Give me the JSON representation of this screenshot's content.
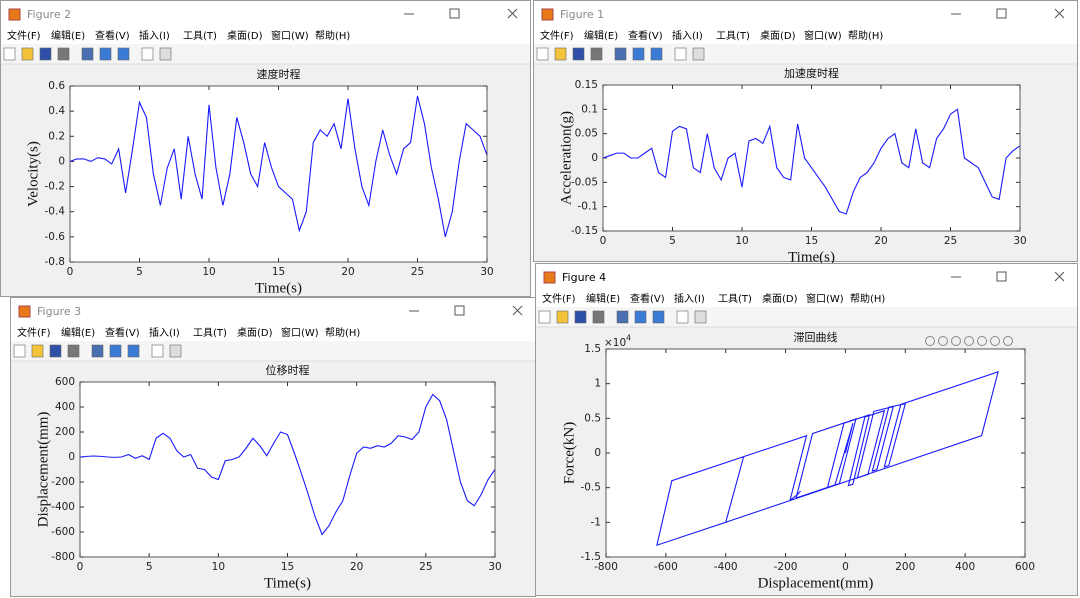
{
  "windows": [
    {
      "title": "Figure 2",
      "menu": [
        "文件(F)",
        "编辑(E)",
        "查看(V)",
        "插入(I)",
        "工具(T)",
        "桌面(D)",
        "窗口(W)",
        "帮助(H)"
      ]
    },
    {
      "title": "Figure 1",
      "menu": [
        "文件(F)",
        "编辑(E)",
        "查看(V)",
        "插入(I)",
        "工具(T)",
        "桌面(D)",
        "窗口(W)",
        "帮助(H)"
      ]
    },
    {
      "title": "Figure 3",
      "menu": [
        "文件(F)",
        "编辑(E)",
        "查看(V)",
        "插入(I)",
        "工具(T)",
        "桌面(D)",
        "窗口(W)",
        "帮助(H)"
      ]
    },
    {
      "title": "Figure 4",
      "menu": [
        "文件(F)",
        "编辑(E)",
        "查看(V)",
        "插入(I)",
        "工具(T)",
        "桌面(D)",
        "窗口(W)",
        "帮助(H)"
      ]
    }
  ],
  "chart_data": [
    {
      "type": "line",
      "title": "速度时程",
      "xlabel": "Time(s)",
      "ylabel": "Velocity(s)",
      "x": [
        0,
        0.5,
        1,
        1.5,
        2,
        2.5,
        3,
        3.5,
        4,
        4.5,
        5,
        5.5,
        6,
        6.5,
        7,
        7.5,
        8,
        8.5,
        9,
        9.5,
        10,
        10.5,
        11,
        11.5,
        12,
        12.5,
        13,
        13.5,
        14,
        14.5,
        15,
        15.5,
        16,
        16.5,
        17,
        17.5,
        18,
        18.5,
        19,
        19.5,
        20,
        20.5,
        21,
        21.5,
        22,
        22.5,
        23,
        23.5,
        24,
        24.5,
        25,
        25.5,
        26,
        26.5,
        27,
        27.5,
        28,
        28.5,
        29,
        29.5,
        30
      ],
      "series": [
        {
          "color": "#1a1aff",
          "values": [
            0,
            0.02,
            0.02,
            0,
            0.03,
            0.02,
            -0.02,
            0.1,
            -0.25,
            0.1,
            0.47,
            0.35,
            -0.1,
            -0.35,
            -0.05,
            0.1,
            -0.3,
            0.2,
            -0.1,
            -0.3,
            0.45,
            -0.05,
            -0.35,
            -0.1,
            0.35,
            0.15,
            -0.1,
            -0.2,
            0.15,
            -0.05,
            -0.2,
            -0.25,
            -0.3,
            -0.55,
            -0.4,
            0.15,
            0.25,
            0.2,
            0.3,
            0.1,
            0.5,
            0.1,
            -0.2,
            -0.35,
            0,
            0.25,
            0.05,
            -0.1,
            0.1,
            0.15,
            0.52,
            0.3,
            -0.05,
            -0.3,
            -0.6,
            -0.4,
            0,
            0.3,
            0.25,
            0.2,
            0.05
          ]
        }
      ],
      "xlim": [
        0,
        30
      ],
      "xticks": [
        0,
        5,
        10,
        15,
        20,
        25,
        30
      ],
      "ylim": [
        -0.8,
        0.6
      ],
      "yticks": [
        -0.8,
        -0.6,
        -0.4,
        -0.2,
        0,
        0.2,
        0.4,
        0.6
      ]
    },
    {
      "type": "line",
      "title": "加速度时程",
      "xlabel": "Time(s)",
      "ylabel": "Acceleration(g)",
      "x": [
        0,
        0.5,
        1,
        1.5,
        2,
        2.5,
        3,
        3.5,
        4,
        4.5,
        5,
        5.5,
        6,
        6.5,
        7,
        7.5,
        8,
        8.5,
        9,
        9.5,
        10,
        10.5,
        11,
        11.5,
        12,
        12.5,
        13,
        13.5,
        14,
        14.5,
        15,
        15.5,
        16,
        16.5,
        17,
        17.5,
        18,
        18.5,
        19,
        19.5,
        20,
        20.5,
        21,
        21.5,
        22,
        22.5,
        23,
        23.5,
        24,
        24.5,
        25,
        25.5,
        26,
        26.5,
        27,
        27.5,
        28,
        28.5,
        29,
        29.5,
        30
      ],
      "series": [
        {
          "color": "#1a1aff",
          "values": [
            0,
            0.005,
            0.01,
            0.01,
            0,
            0,
            0.01,
            0.02,
            -0.03,
            -0.04,
            0.055,
            0.065,
            0.06,
            -0.02,
            -0.03,
            0.05,
            -0.02,
            -0.045,
            0,
            0.01,
            -0.06,
            0.035,
            0.04,
            0.03,
            0.065,
            -0.02,
            -0.04,
            -0.045,
            0.07,
            0,
            -0.02,
            -0.04,
            -0.06,
            -0.085,
            -0.11,
            -0.115,
            -0.07,
            -0.04,
            -0.03,
            -0.01,
            0.02,
            0.04,
            0.05,
            -0.01,
            -0.02,
            0.06,
            -0.01,
            -0.02,
            0.04,
            0.06,
            0.09,
            0.1,
            0,
            -0.01,
            -0.02,
            -0.05,
            -0.08,
            -0.085,
            0,
            0.015,
            0.025
          ]
        }
      ],
      "xlim": [
        0,
        30
      ],
      "xticks": [
        0,
        5,
        10,
        15,
        20,
        25,
        30
      ],
      "ylim": [
        -0.15,
        0.15
      ],
      "yticks": [
        -0.15,
        -0.1,
        -0.05,
        0,
        0.05,
        0.1,
        0.15
      ]
    },
    {
      "type": "line",
      "title": "位移时程",
      "xlabel": "Time(s)",
      "ylabel": "Displacement(mm)",
      "x": [
        0,
        0.5,
        1,
        1.5,
        2,
        2.5,
        3,
        3.5,
        4,
        4.5,
        5,
        5.5,
        6,
        6.5,
        7,
        7.5,
        8,
        8.5,
        9,
        9.5,
        10,
        10.5,
        11,
        11.5,
        12,
        12.5,
        13,
        13.5,
        14,
        14.5,
        15,
        15.5,
        16,
        16.5,
        17,
        17.5,
        18,
        18.5,
        19,
        19.5,
        20,
        20.5,
        21,
        21.5,
        22,
        22.5,
        23,
        23.5,
        24,
        24.5,
        25,
        25.5,
        26,
        26.5,
        27,
        27.5,
        28,
        28.5,
        29,
        29.5,
        30
      ],
      "series": [
        {
          "color": "#1a1aff",
          "values": [
            0,
            5,
            8,
            5,
            0,
            -3,
            0,
            20,
            -10,
            10,
            -20,
            150,
            190,
            150,
            50,
            0,
            20,
            -90,
            -100,
            -160,
            -180,
            -30,
            -20,
            0,
            70,
            150,
            90,
            10,
            110,
            200,
            180,
            30,
            -130,
            -300,
            -480,
            -620,
            -550,
            -440,
            -350,
            -150,
            30,
            80,
            70,
            90,
            80,
            110,
            170,
            160,
            140,
            200,
            400,
            500,
            450,
            300,
            50,
            -200,
            -350,
            -390,
            -300,
            -180,
            -100
          ]
        }
      ],
      "xlim": [
        0,
        30
      ],
      "xticks": [
        0,
        5,
        10,
        15,
        20,
        25,
        30
      ],
      "ylim": [
        -800,
        600
      ],
      "yticks": [
        -800,
        -600,
        -400,
        -200,
        0,
        200,
        400,
        600
      ]
    },
    {
      "type": "line",
      "title": "滞回曲线",
      "xlabel": "Displacement(mm)",
      "ylabel": "Force(kN)",
      "yscale_base": "×10",
      "yscale_exponent": "4",
      "x": [
        0,
        25,
        -35,
        -165,
        -110,
        35,
        -20,
        -60,
        -5,
        80,
        25,
        10,
        65,
        130,
        75,
        40,
        95,
        160,
        105,
        90,
        145,
        200,
        145,
        130,
        185,
        510,
        455,
        -400,
        -340,
        -400,
        -630,
        -580,
        -130,
        -185,
        -160,
        -150
      ],
      "series": [
        {
          "color": "#1a1aff",
          "values": [
            0,
            0.43,
            -0.46,
            -0.65,
            0.28,
            0.49,
            -0.44,
            -0.5,
            0.43,
            0.55,
            -0.45,
            -0.47,
            0.52,
            0.61,
            -0.31,
            -0.36,
            0.6,
            0.67,
            -0.24,
            -0.26,
            0.66,
            0.71,
            -0.18,
            -0.2,
            0.7,
            1.17,
            0.25,
            -1,
            -0.05,
            -1,
            -1.33,
            -0.4,
            0.25,
            -0.68,
            -0.6,
            -0.55
          ]
        }
      ],
      "xlim": [
        -800,
        600
      ],
      "xticks": [
        -800,
        -600,
        -400,
        -200,
        0,
        200,
        400,
        600
      ],
      "ylim": [
        -1.5,
        1.5
      ],
      "yticks": [
        -1.5,
        -1,
        -0.5,
        0,
        0.5,
        1,
        1.5
      ]
    }
  ]
}
